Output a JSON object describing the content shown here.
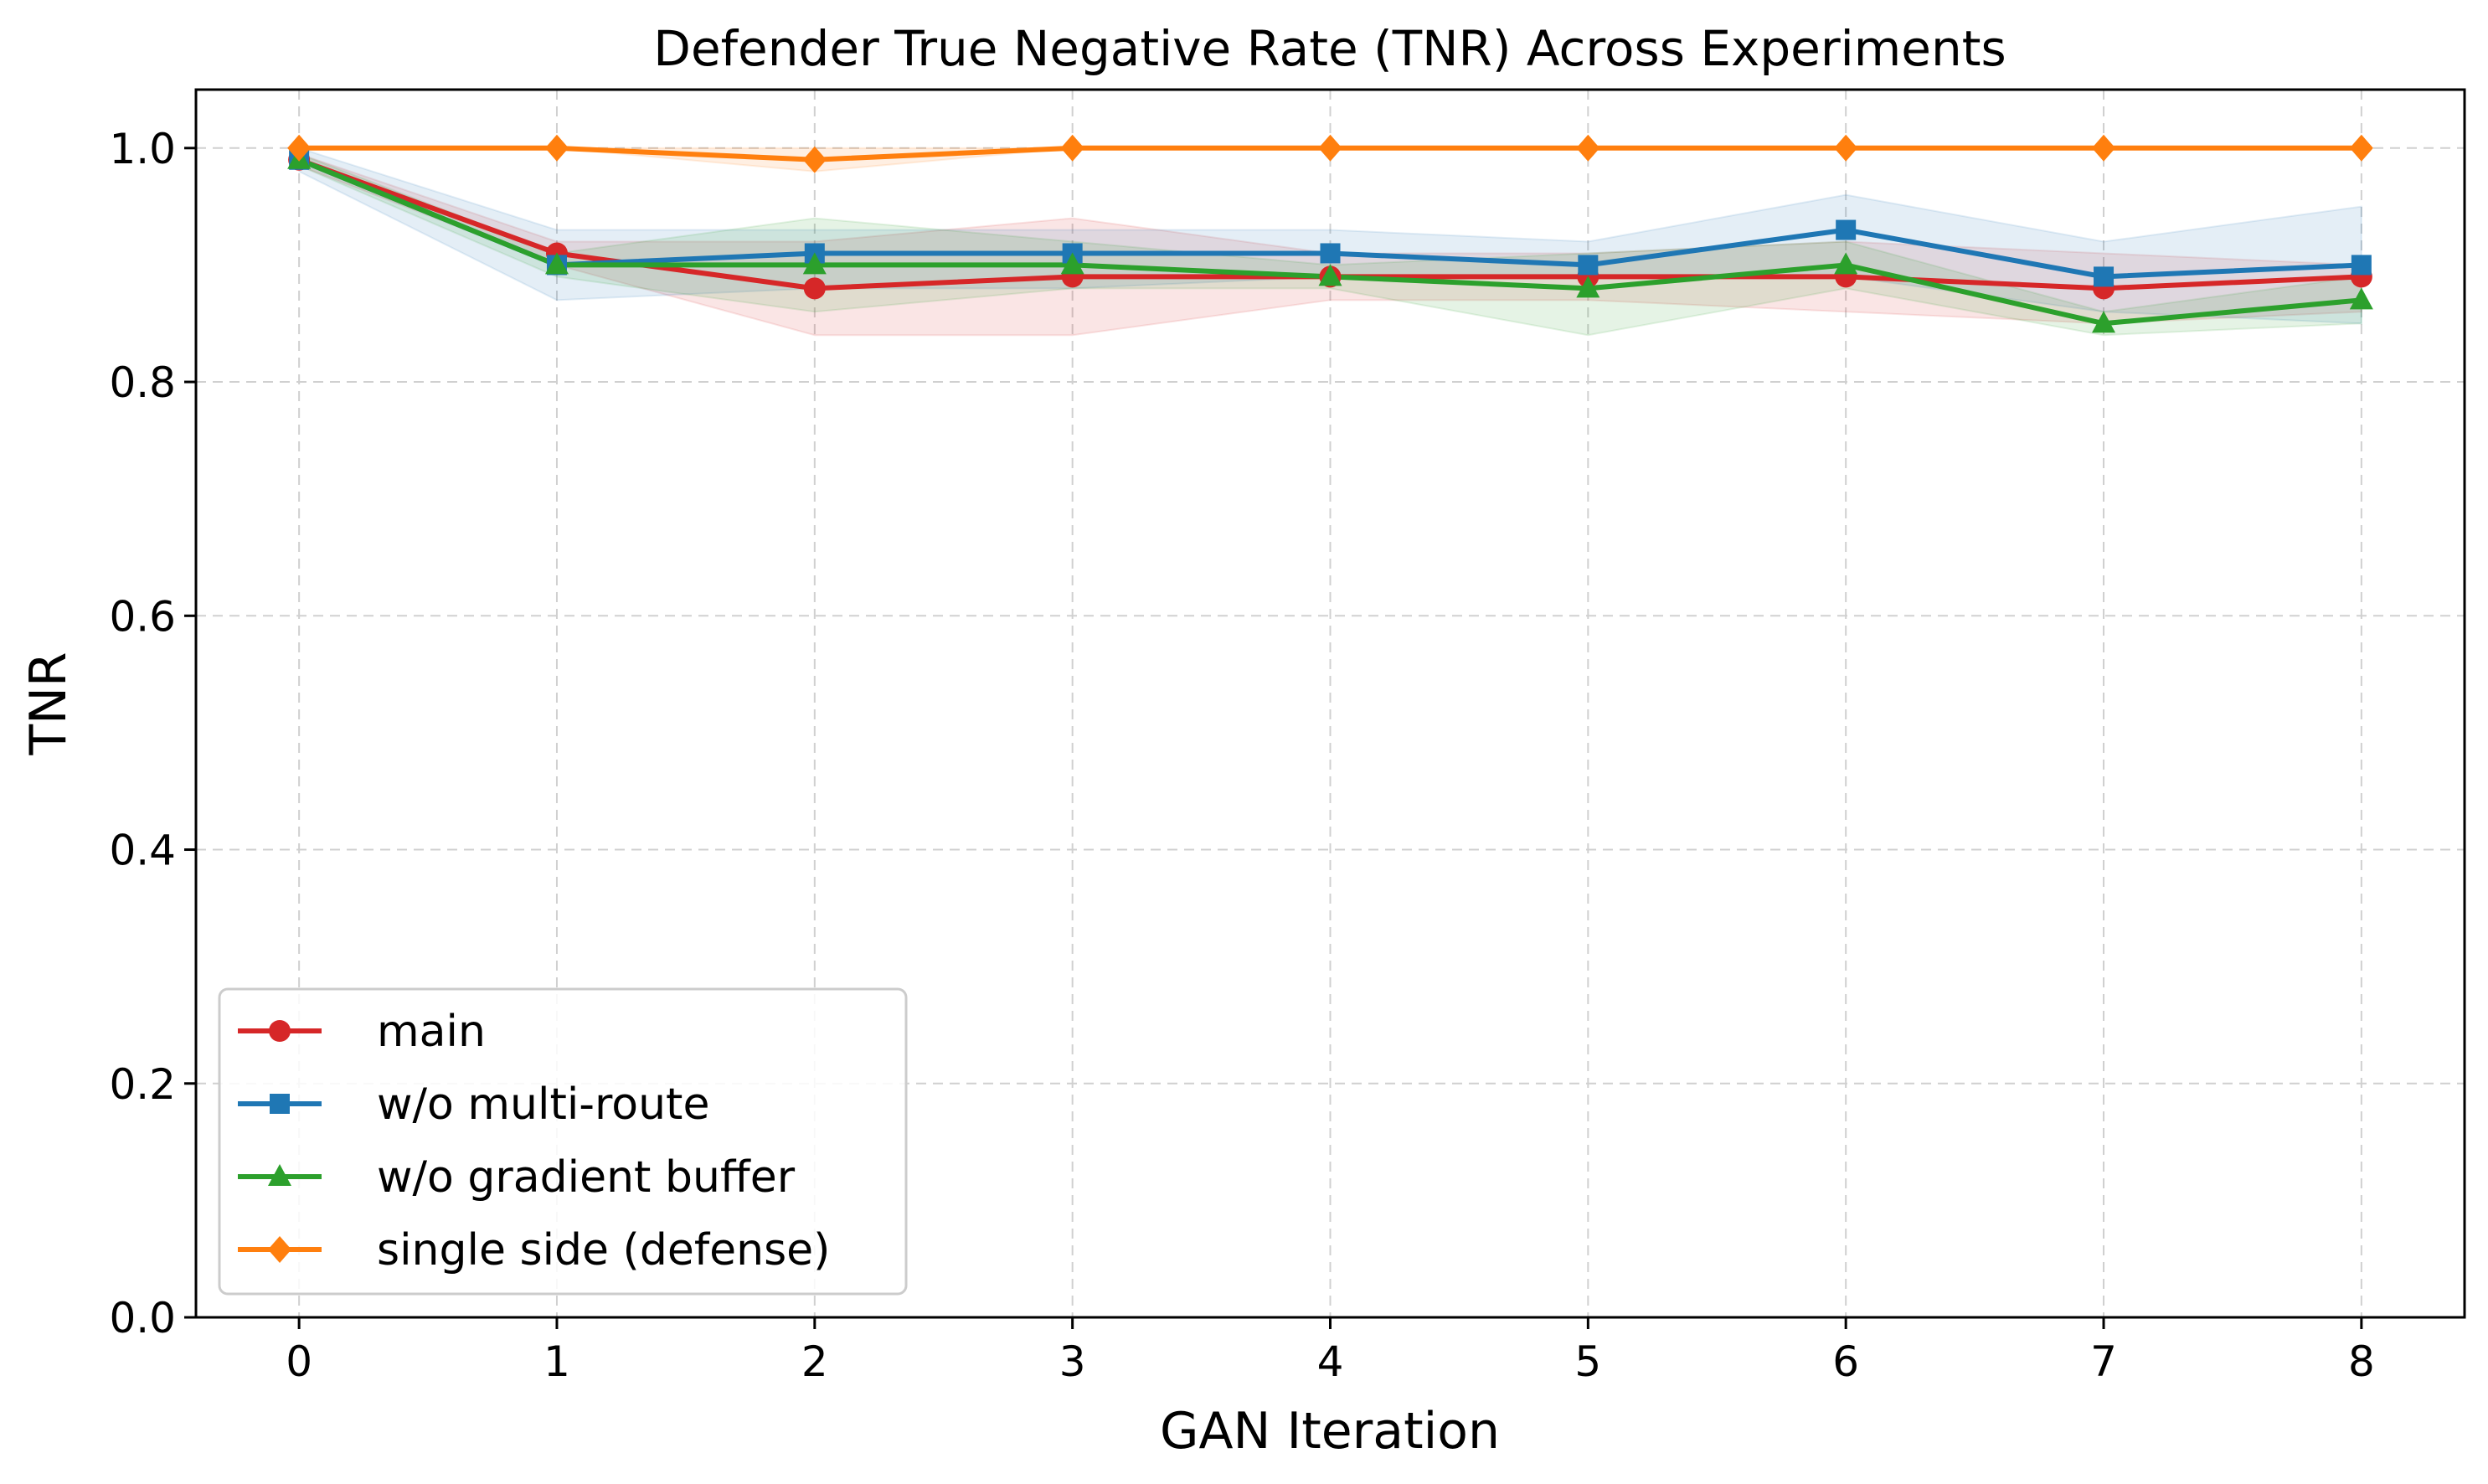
{
  "chart_data": {
    "type": "line",
    "title": "Defender True Negative Rate (TNR) Across Experiments",
    "xlabel": "GAN Iteration",
    "ylabel": "TNR",
    "x": [
      0,
      1,
      2,
      3,
      4,
      5,
      6,
      7,
      8
    ],
    "xlim": [
      -0.4,
      8.4
    ],
    "ylim": [
      0.0,
      1.05
    ],
    "xticks": [
      "0",
      "1",
      "2",
      "3",
      "4",
      "5",
      "6",
      "7",
      "8"
    ],
    "yticks": [
      "0.0",
      "0.2",
      "0.4",
      "0.6",
      "0.8",
      "1.0"
    ],
    "grid": true,
    "legend_position": "lower-left",
    "series": [
      {
        "name": "main",
        "color": "#d62728",
        "marker": "circle",
        "values": [
          0.99,
          0.91,
          0.88,
          0.89,
          0.89,
          0.89,
          0.89,
          0.88,
          0.89
        ],
        "lower": [
          0.985,
          0.9,
          0.84,
          0.84,
          0.87,
          0.87,
          0.86,
          0.85,
          0.86
        ],
        "upper": [
          0.995,
          0.92,
          0.92,
          0.94,
          0.91,
          0.91,
          0.92,
          0.91,
          0.9
        ]
      },
      {
        "name": "w/o multi-route",
        "color": "#1f77b4",
        "marker": "square",
        "values": [
          0.99,
          0.9,
          0.91,
          0.91,
          0.91,
          0.9,
          0.93,
          0.89,
          0.9
        ],
        "lower": [
          0.98,
          0.87,
          0.88,
          0.88,
          0.89,
          0.89,
          0.89,
          0.86,
          0.85
        ],
        "upper": [
          1.0,
          0.93,
          0.93,
          0.93,
          0.93,
          0.92,
          0.96,
          0.92,
          0.95
        ]
      },
      {
        "name": "w/o gradient buffer",
        "color": "#2ca02c",
        "marker": "triangle",
        "values": [
          0.99,
          0.9,
          0.9,
          0.9,
          0.89,
          0.88,
          0.9,
          0.85,
          0.87
        ],
        "lower": [
          0.985,
          0.89,
          0.86,
          0.88,
          0.88,
          0.84,
          0.88,
          0.84,
          0.85
        ],
        "upper": [
          0.995,
          0.91,
          0.94,
          0.92,
          0.9,
          0.91,
          0.92,
          0.86,
          0.89
        ]
      },
      {
        "name": "single side (defense)",
        "color": "#ff7f0e",
        "marker": "diamond",
        "values": [
          1.0,
          1.0,
          0.99,
          1.0,
          1.0,
          1.0,
          1.0,
          1.0,
          1.0
        ],
        "lower": [
          1.0,
          1.0,
          0.98,
          1.0,
          1.0,
          1.0,
          1.0,
          1.0,
          1.0
        ],
        "upper": [
          1.0,
          1.0,
          1.0,
          1.0,
          1.0,
          1.0,
          1.0,
          1.0,
          1.0
        ]
      }
    ]
  }
}
